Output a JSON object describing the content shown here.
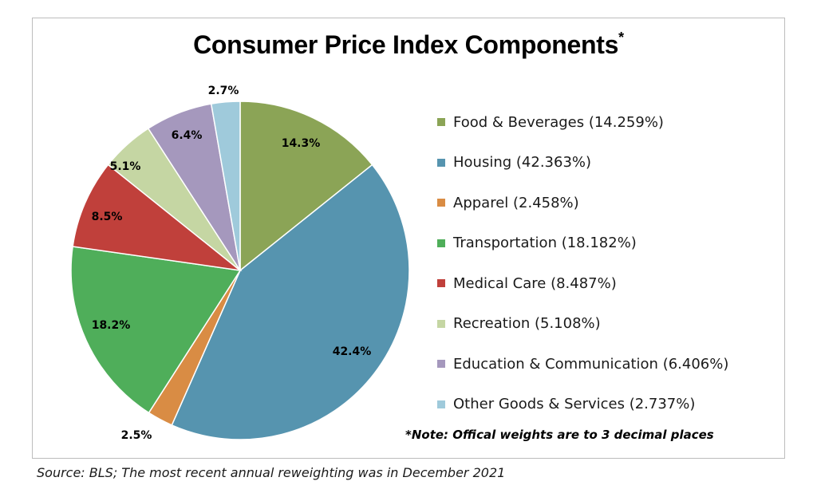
{
  "chart_data": {
    "type": "pie",
    "title": "Consumer Price Index Components",
    "title_superscript": "*",
    "slices": [
      {
        "name": "Food & Beverages",
        "value": 14.259,
        "label": "14.3%",
        "legend": "Food & Beverages (14.259%)",
        "color": "#8ba456"
      },
      {
        "name": "Housing",
        "value": 42.363,
        "label": "42.4%",
        "legend": "Housing (42.363%)",
        "color": "#5694af"
      },
      {
        "name": "Apparel",
        "value": 2.458,
        "label": "2.5%",
        "legend": "Apparel (2.458%)",
        "color": "#d98c44"
      },
      {
        "name": "Transportation",
        "value": 18.182,
        "label": "18.2%",
        "legend": "Transportation (18.182%)",
        "color": "#4fae5a"
      },
      {
        "name": "Medical Care",
        "value": 8.487,
        "label": "8.5%",
        "legend": "Medical Care (8.487%)",
        "color": "#c0403b"
      },
      {
        "name": "Recreation",
        "value": 5.108,
        "label": "5.1%",
        "legend": "Recreation (5.108%)",
        "color": "#c5d6a3"
      },
      {
        "name": "Education & Communication",
        "value": 6.406,
        "label": "6.4%",
        "legend": "Education & Communication (6.406%)",
        "color": "#a598bd"
      },
      {
        "name": "Other Goods & Services",
        "value": 2.737,
        "label": "2.7%",
        "legend": "Other Goods & Services (2.737%)",
        "color": "#9fcadb"
      }
    ],
    "legend_position": "right",
    "note": "*Note: Offical weights are to 3 decimal places",
    "source": "Source: BLS; The most recent annual reweighting was in December 2021"
  }
}
